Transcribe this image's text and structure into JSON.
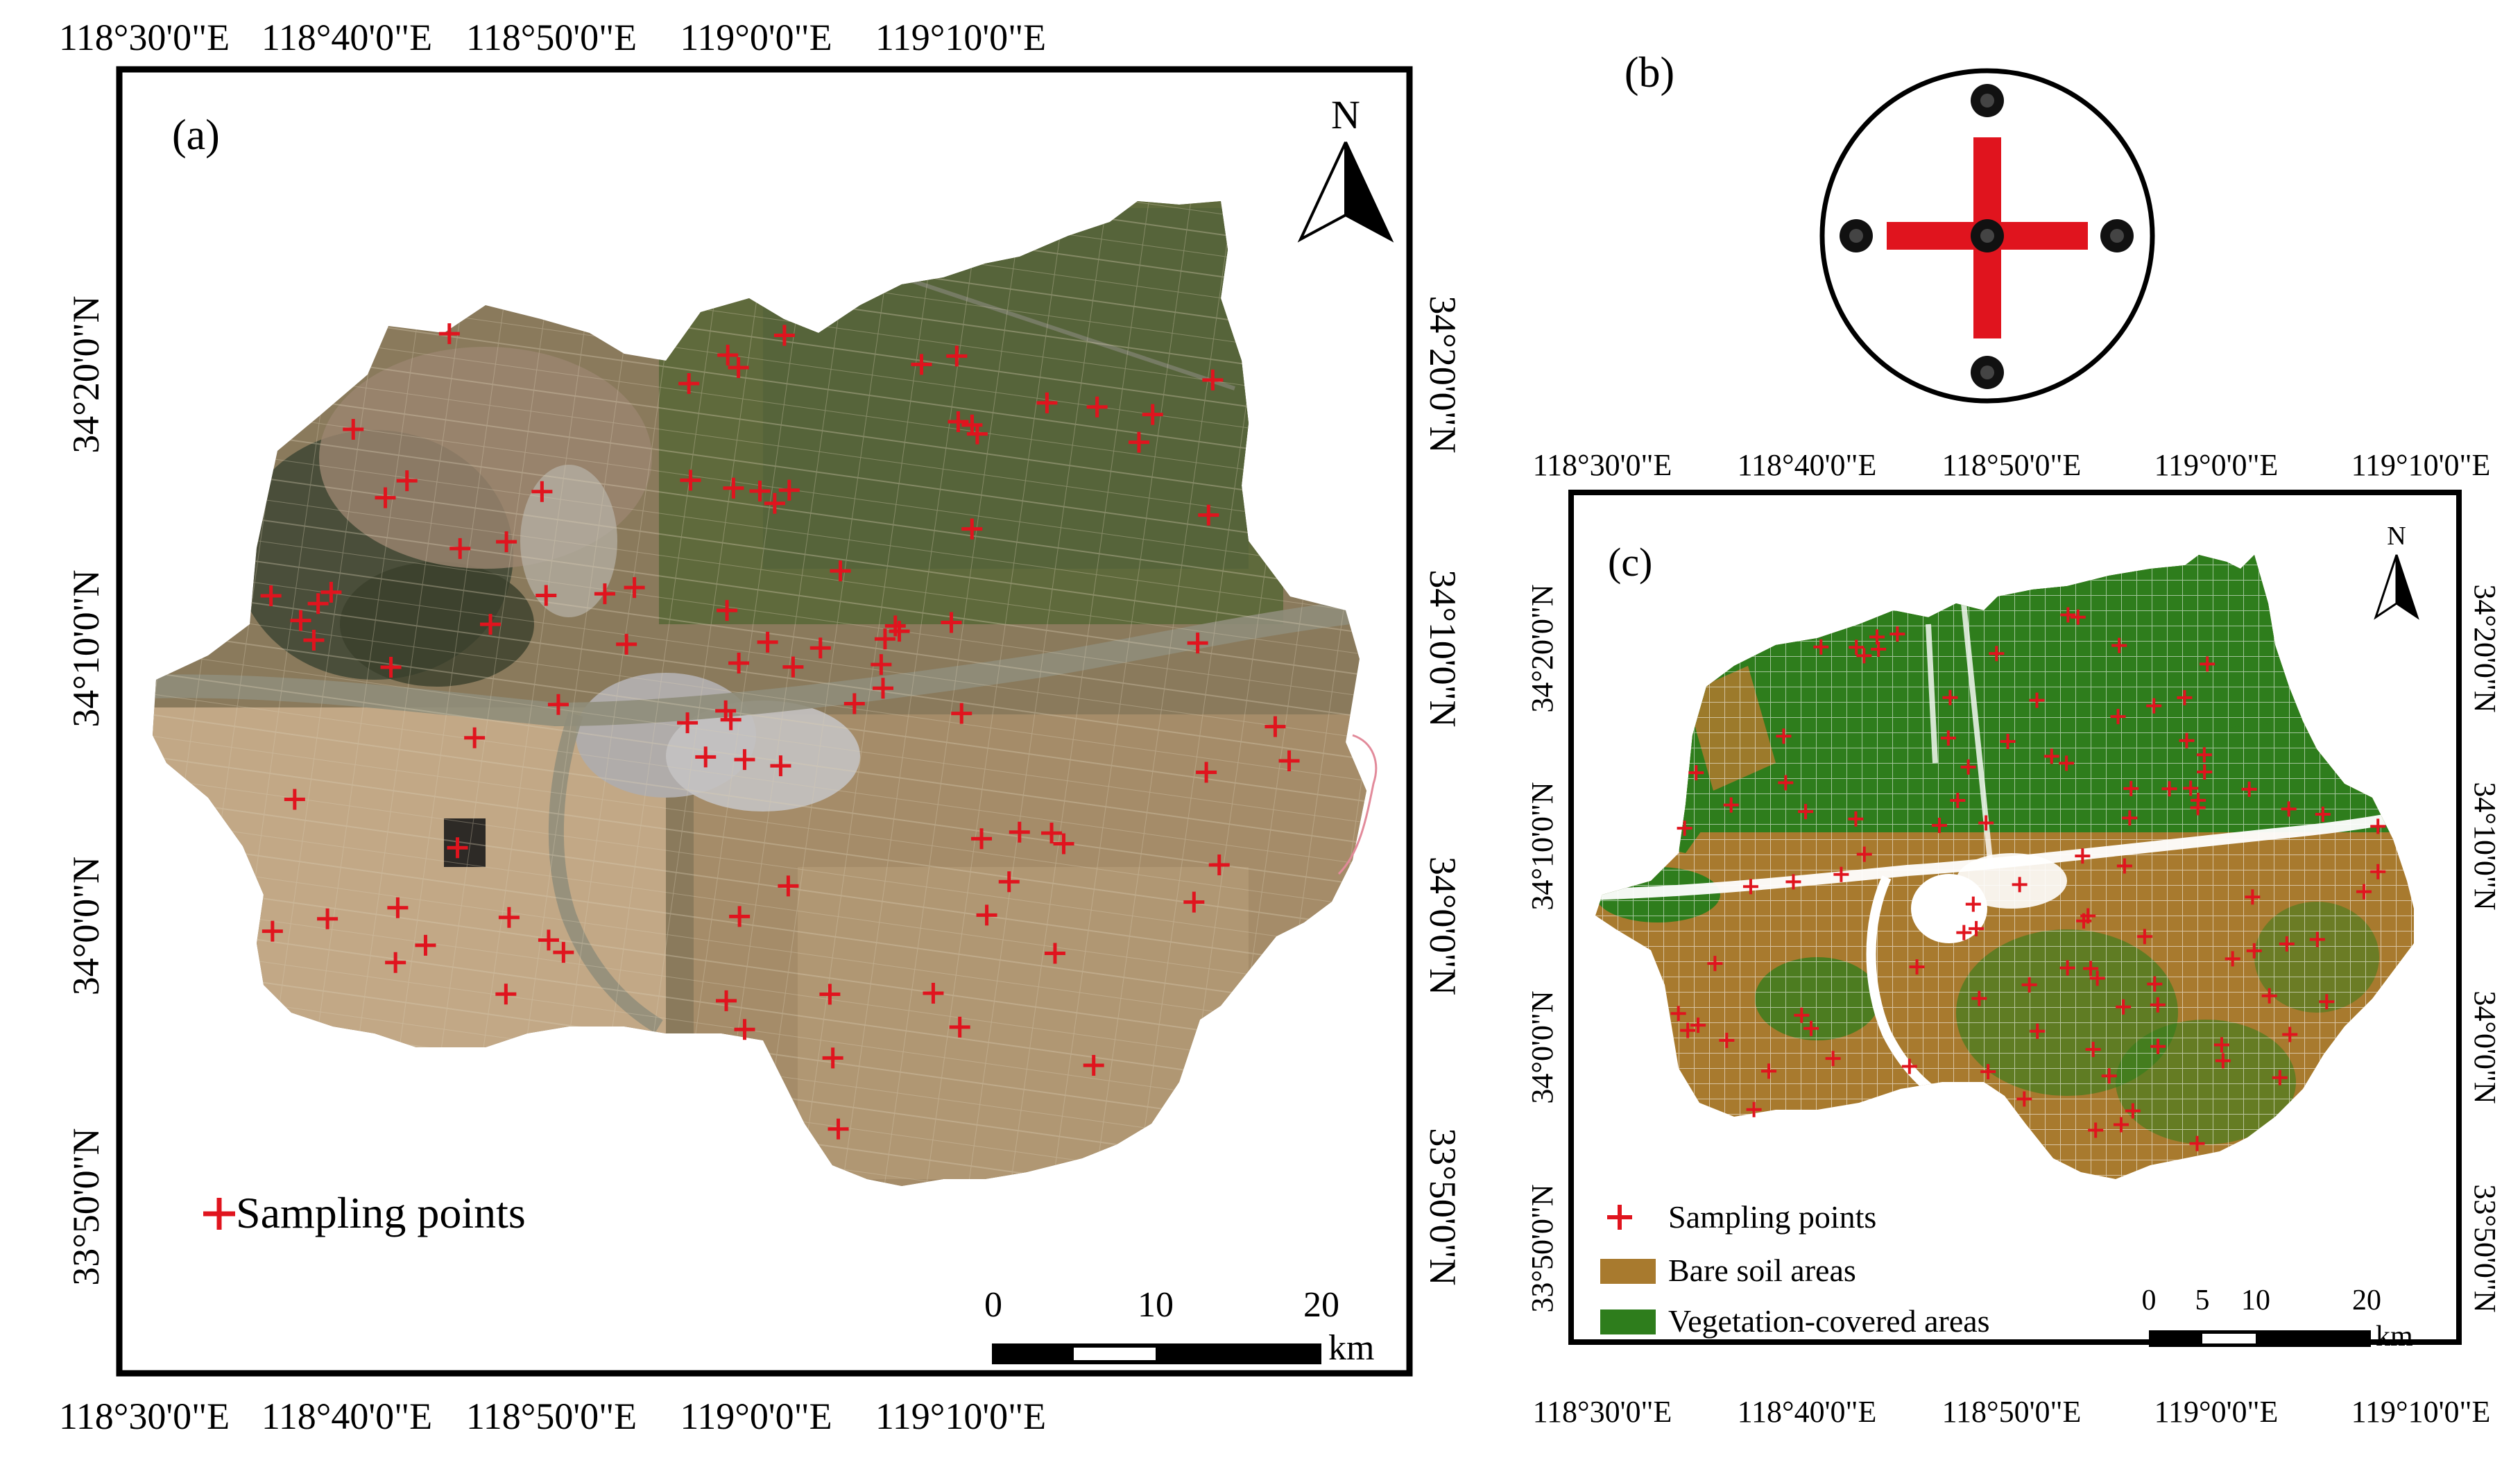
{
  "panel_a": {
    "label": "(a)",
    "north": "N",
    "top_ticks": [
      "118°30'0\"E",
      "118°40'0\"E",
      "118°50'0\"E",
      "119°0'0\"E",
      "119°10'0\"E"
    ],
    "bottom_ticks": [
      "118°30'0\"E",
      "118°40'0\"E",
      "118°50'0\"E",
      "119°0'0\"E",
      "119°10'0\"E"
    ],
    "left_ticks": [
      "34°20'0\"N",
      "34°10'0\"N",
      "34°0'0\"N",
      "33°50'0\"N"
    ],
    "right_ticks": [
      "34°20'0\"N",
      "34°10'0\"N",
      "34°0'0\"N",
      "33°50'0\"N"
    ],
    "legend_sampling": "Sampling points",
    "scale": {
      "labels": [
        "0",
        "10",
        "20"
      ],
      "unit": "km"
    }
  },
  "panel_b": {
    "label": "(b)"
  },
  "panel_c": {
    "label": "(c)",
    "north": "N",
    "top_ticks": [
      "118°30'0\"E",
      "118°40'0\"E",
      "118°50'0\"E",
      "119°0'0\"E",
      "119°10'0\"E"
    ],
    "bottom_ticks": [
      "118°30'0\"E",
      "118°40'0\"E",
      "118°50'0\"E",
      "119°0'0\"E",
      "119°10'0\"E"
    ],
    "left_ticks": [
      "34°20'0\"N",
      "34°10'0\"N",
      "34°0'0\"N",
      "33°50'0\"N"
    ],
    "right_ticks": [
      "34°20'0\"N",
      "34°10'0\"N",
      "34°0'0\"N",
      "33°50'0\"N"
    ],
    "legend": {
      "sampling": "Sampling points",
      "bare": "Bare soil areas",
      "vegetation": "Vegetation-covered areas"
    },
    "scale": {
      "labels": [
        "0",
        "5",
        "10",
        "20"
      ],
      "unit": "km"
    }
  },
  "colors": {
    "sampling_marker": "#e0141e",
    "bare_soil": "#a87a2e",
    "vegetation": "#2e7d1c",
    "frame": "#000000"
  }
}
